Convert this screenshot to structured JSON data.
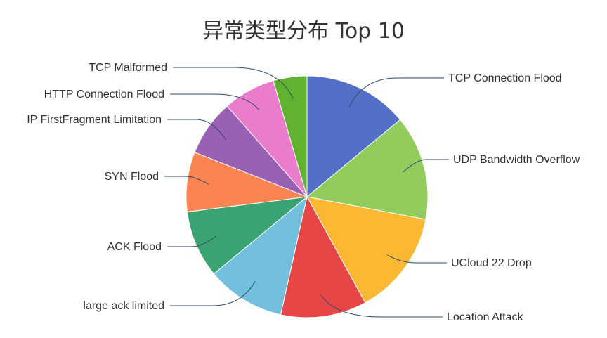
{
  "chart_data": {
    "type": "pie",
    "title": "异常类型分布 Top 10",
    "categories": [
      "TCP Connection Flood",
      "UDP Bandwidth Overflow",
      "UCloud 22 Drop",
      "Location Attack",
      "large ack limited",
      "ACK Flood",
      "SYN Flood",
      "IP FirstFragment Limitation",
      "HTTP Connection Flood",
      "TCP Malformed"
    ],
    "values": [
      14,
      14,
      14,
      11.5,
      10.5,
      9,
      8,
      7.5,
      7,
      4.5
    ],
    "colors": [
      "#5470c6",
      "#91cc5c",
      "#fbb832",
      "#e74646",
      "#73c0de",
      "#3ba272",
      "#fc8452",
      "#9a60b4",
      "#ea7ccc",
      "#61b22e"
    ],
    "start_angle": "12 o'clock",
    "direction": "clockwise",
    "legend": "none"
  }
}
